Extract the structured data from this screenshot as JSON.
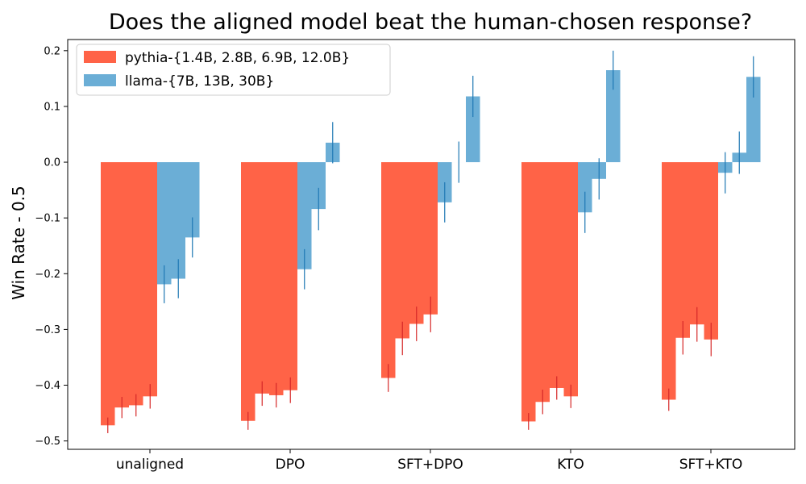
{
  "chart_data": {
    "type": "bar",
    "title": "Does the aligned model beat the human-chosen response?",
    "xlabel": "",
    "ylabel": "Win Rate - 0.5",
    "ylim": [
      -0.515,
      0.22
    ],
    "yticks": [
      "0.2",
      "0.1",
      "0.0",
      "−0.1",
      "−0.2",
      "−0.3",
      "−0.4",
      "−0.5"
    ],
    "ytick_values": [
      0.2,
      0.1,
      0.0,
      -0.1,
      -0.2,
      -0.3,
      -0.4,
      -0.5
    ],
    "categories": [
      "unaligned",
      "DPO",
      "SFT+DPO",
      "KTO",
      "SFT+KTO"
    ],
    "legend_position": "top-left",
    "grid": false,
    "series": [
      {
        "name": "pythia-{1.4B, 2.8B, 6.9B, 12.0B}",
        "color": "#ff6347",
        "error_color": "#d62728",
        "values": [
          [
            -0.472,
            -0.44,
            -0.436,
            -0.42
          ],
          [
            -0.464,
            -0.415,
            -0.418,
            -0.409
          ],
          [
            -0.387,
            -0.316,
            -0.29,
            -0.273
          ],
          [
            -0.465,
            -0.43,
            -0.405,
            -0.42
          ],
          [
            -0.426,
            -0.315,
            -0.291,
            -0.318
          ]
        ],
        "errors": [
          [
            0.014,
            0.019,
            0.02,
            0.022
          ],
          [
            0.016,
            0.022,
            0.022,
            0.023
          ],
          [
            0.025,
            0.03,
            0.031,
            0.032
          ],
          [
            0.015,
            0.022,
            0.021,
            0.021
          ],
          [
            0.02,
            0.03,
            0.031,
            0.03
          ]
        ]
      },
      {
        "name": "llama-{7B, 13B, 30B}",
        "color": "#6baed6",
        "error_color": "#1f77b4",
        "values": [
          [
            -0.219,
            -0.209,
            -0.135
          ],
          [
            -0.192,
            -0.084,
            0.035
          ],
          [
            -0.072,
            0.0,
            0.118
          ],
          [
            -0.09,
            -0.03,
            0.165
          ],
          [
            -0.019,
            0.017,
            0.153
          ]
        ],
        "errors": [
          [
            0.034,
            0.035,
            0.036
          ],
          [
            0.036,
            0.038,
            0.037
          ],
          [
            0.036,
            0.037,
            0.037
          ],
          [
            0.037,
            0.037,
            0.035
          ],
          [
            0.037,
            0.038,
            0.037
          ]
        ]
      }
    ]
  }
}
